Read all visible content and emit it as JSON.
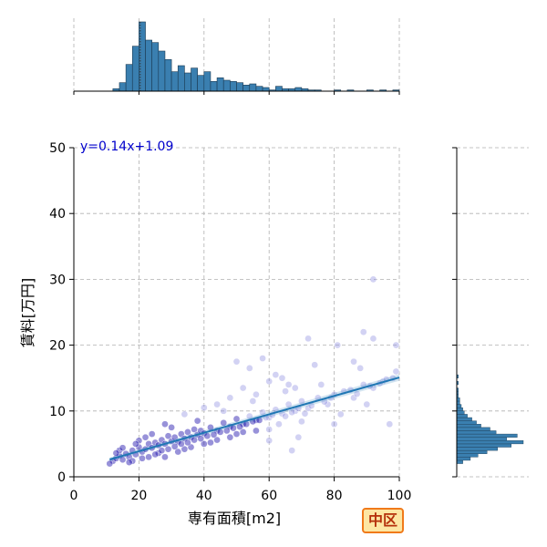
{
  "chart_data": [
    {
      "type": "scatter",
      "panel": "joint",
      "xlabel": "専有面積[m2]",
      "ylabel": "賃料[万円]",
      "xlim": [
        0,
        100
      ],
      "ylim": [
        0,
        50
      ],
      "x_ticks": [
        0,
        20,
        40,
        60,
        80,
        100
      ],
      "y_ticks": [
        0,
        10,
        20,
        30,
        40,
        50
      ],
      "grid": true,
      "regression": {
        "slope": 0.14,
        "intercept": 1.09,
        "label": "y=0.14x+1.09",
        "x_range": [
          11,
          100
        ]
      },
      "points": [
        [
          12,
          2.4
        ],
        [
          13,
          2.8
        ],
        [
          14,
          3.2
        ],
        [
          15,
          2.6
        ],
        [
          16,
          3.5
        ],
        [
          17,
          3.0
        ],
        [
          18,
          4.0
        ],
        [
          19,
          3.4
        ],
        [
          20,
          4.5
        ],
        [
          21,
          3.8
        ],
        [
          22,
          4.2
        ],
        [
          23,
          5.0
        ],
        [
          24,
          4.4
        ],
        [
          25,
          5.2
        ],
        [
          26,
          4.8
        ],
        [
          27,
          5.6
        ],
        [
          28,
          5.0
        ],
        [
          29,
          6.2
        ],
        [
          30,
          5.4
        ],
        [
          31,
          6.0
        ],
        [
          32,
          5.3
        ],
        [
          33,
          6.5
        ],
        [
          34,
          5.8
        ],
        [
          35,
          6.8
        ],
        [
          36,
          6.0
        ],
        [
          37,
          7.2
        ],
        [
          38,
          6.4
        ],
        [
          39,
          7.0
        ],
        [
          40,
          6.6
        ],
        [
          42,
          7.5
        ],
        [
          44,
          7.0
        ],
        [
          46,
          8.2
        ],
        [
          48,
          7.6
        ],
        [
          50,
          8.8
        ],
        [
          52,
          8.0
        ],
        [
          54,
          9.2
        ],
        [
          56,
          8.6
        ],
        [
          58,
          9.8
        ],
        [
          60,
          9.0
        ],
        [
          62,
          10.2
        ],
        [
          64,
          9.6
        ],
        [
          66,
          11.0
        ],
        [
          68,
          10.0
        ],
        [
          70,
          11.5
        ],
        [
          72,
          10.4
        ],
        [
          75,
          12.0
        ],
        [
          78,
          11.0
        ],
        [
          80,
          12.5
        ],
        [
          83,
          13.0
        ],
        [
          86,
          12.0
        ],
        [
          89,
          14.0
        ],
        [
          92,
          13.5
        ],
        [
          95,
          14.5
        ],
        [
          98,
          15.0
        ],
        [
          14,
          4.0
        ],
        [
          18,
          2.4
        ],
        [
          22,
          6.0
        ],
        [
          26,
          3.6
        ],
        [
          30,
          7.5
        ],
        [
          34,
          4.2
        ],
        [
          38,
          8.5
        ],
        [
          42,
          5.2
        ],
        [
          46,
          10.0
        ],
        [
          50,
          6.5
        ],
        [
          55,
          11.5
        ],
        [
          60,
          7.2
        ],
        [
          65,
          13.0
        ],
        [
          70,
          8.4
        ],
        [
          76,
          14.0
        ],
        [
          82,
          9.5
        ],
        [
          88,
          16.5
        ],
        [
          50,
          17.5
        ],
        [
          54,
          16.5
        ],
        [
          58,
          18.0
        ],
        [
          62,
          15.5
        ],
        [
          66,
          14.0
        ],
        [
          72,
          21.0
        ],
        [
          74,
          17.0
        ],
        [
          81,
          20.0
        ],
        [
          86,
          17.5
        ],
        [
          89,
          22.0
        ],
        [
          92,
          21.0
        ],
        [
          99,
          20.0
        ],
        [
          92,
          30.0
        ],
        [
          99,
          16.0
        ],
        [
          97,
          8.0
        ],
        [
          80,
          8.0
        ],
        [
          69,
          6.0
        ],
        [
          67,
          4.0
        ],
        [
          60,
          5.5
        ],
        [
          28,
          8.0
        ],
        [
          34,
          9.5
        ],
        [
          40,
          10.5
        ],
        [
          44,
          11.0
        ],
        [
          48,
          12.0
        ],
        [
          52,
          13.5
        ],
        [
          56,
          12.5
        ],
        [
          60,
          14.5
        ],
        [
          64,
          15.0
        ],
        [
          68,
          13.5
        ],
        [
          20,
          5.5
        ],
        [
          24,
          6.5
        ],
        [
          28,
          3.0
        ],
        [
          32,
          3.8
        ],
        [
          36,
          4.5
        ],
        [
          40,
          5.0
        ],
        [
          44,
          5.6
        ],
        [
          48,
          6.0
        ],
        [
          52,
          6.8
        ],
        [
          56,
          7.0
        ],
        [
          11,
          2.0
        ],
        [
          13,
          3.6
        ],
        [
          15,
          4.4
        ],
        [
          17,
          2.2
        ],
        [
          19,
          5.0
        ],
        [
          21,
          2.8
        ],
        [
          23,
          3.0
        ],
        [
          25,
          3.4
        ],
        [
          27,
          4.0
        ],
        [
          29,
          4.2
        ],
        [
          31,
          4.6
        ],
        [
          33,
          5.0
        ],
        [
          35,
          5.2
        ],
        [
          37,
          5.6
        ],
        [
          39,
          5.8
        ],
        [
          41,
          6.2
        ],
        [
          43,
          6.4
        ],
        [
          45,
          6.8
        ],
        [
          47,
          7.0
        ],
        [
          49,
          7.4
        ],
        [
          51,
          7.6
        ],
        [
          53,
          8.0
        ],
        [
          55,
          8.4
        ],
        [
          57,
          8.6
        ],
        [
          59,
          9.0
        ],
        [
          61,
          9.4
        ],
        [
          63,
          8.0
        ],
        [
          65,
          9.2
        ],
        [
          67,
          9.8
        ],
        [
          69,
          10.4
        ],
        [
          71,
          9.6
        ],
        [
          73,
          10.8
        ],
        [
          77,
          11.4
        ],
        [
          79,
          12.0
        ],
        [
          85,
          13.2
        ],
        [
          87,
          12.6
        ],
        [
          91,
          13.8
        ],
        [
          94,
          14.2
        ],
        [
          96,
          14.8
        ],
        [
          90,
          11.0
        ]
      ]
    },
    {
      "type": "histogram",
      "panel": "top-marginal",
      "variable": "専有面積[m2]",
      "xlim": [
        0,
        100
      ],
      "bin_width": 2,
      "bins": [
        [
          12,
          14,
          2
        ],
        [
          14,
          16,
          7
        ],
        [
          16,
          18,
          22
        ],
        [
          18,
          20,
          37
        ],
        [
          20,
          22,
          57
        ],
        [
          22,
          24,
          42
        ],
        [
          24,
          26,
          40
        ],
        [
          26,
          28,
          33
        ],
        [
          28,
          30,
          26
        ],
        [
          30,
          32,
          16
        ],
        [
          32,
          34,
          21
        ],
        [
          34,
          36,
          15
        ],
        [
          36,
          38,
          19
        ],
        [
          38,
          40,
          13
        ],
        [
          40,
          42,
          16
        ],
        [
          42,
          44,
          8
        ],
        [
          44,
          46,
          11
        ],
        [
          46,
          48,
          9
        ],
        [
          48,
          50,
          8
        ],
        [
          50,
          52,
          7
        ],
        [
          52,
          54,
          5
        ],
        [
          54,
          56,
          6
        ],
        [
          56,
          58,
          4
        ],
        [
          58,
          60,
          3
        ],
        [
          60,
          62,
          1
        ],
        [
          62,
          64,
          4
        ],
        [
          64,
          66,
          2
        ],
        [
          66,
          68,
          2
        ],
        [
          68,
          70,
          3
        ],
        [
          70,
          72,
          2
        ],
        [
          72,
          74,
          1
        ],
        [
          74,
          76,
          1
        ],
        [
          80,
          82,
          1
        ],
        [
          84,
          86,
          1
        ],
        [
          90,
          92,
          1
        ],
        [
          94,
          96,
          1
        ],
        [
          98,
          100,
          1
        ]
      ],
      "median": 20.4
    },
    {
      "type": "histogram",
      "panel": "right-marginal",
      "variable": "賃料[万円]",
      "ylim": [
        0,
        50
      ],
      "bin_width": 0.5,
      "bins": [
        [
          2.0,
          2.5,
          4
        ],
        [
          2.5,
          3.0,
          9
        ],
        [
          3.0,
          3.5,
          14
        ],
        [
          3.5,
          4.0,
          20
        ],
        [
          4.0,
          4.5,
          27
        ],
        [
          4.5,
          5.0,
          36
        ],
        [
          5.0,
          5.5,
          44
        ],
        [
          5.5,
          6.0,
          33
        ],
        [
          6.0,
          6.5,
          40
        ],
        [
          6.5,
          7.0,
          26
        ],
        [
          7.0,
          7.5,
          22
        ],
        [
          7.5,
          8.0,
          16
        ],
        [
          8.0,
          8.5,
          13
        ],
        [
          8.5,
          9.0,
          10
        ],
        [
          9.0,
          9.5,
          7
        ],
        [
          9.5,
          10.0,
          5
        ],
        [
          10.0,
          10.5,
          4
        ],
        [
          10.5,
          11.0,
          3
        ],
        [
          11.0,
          11.5,
          2
        ],
        [
          11.5,
          12.0,
          2
        ],
        [
          12.0,
          12.5,
          1
        ],
        [
          12.5,
          13.0,
          1
        ],
        [
          13.0,
          13.5,
          1
        ],
        [
          14.0,
          14.5,
          1
        ],
        [
          15.0,
          15.5,
          1
        ]
      ]
    }
  ],
  "badge": {
    "label": "中区"
  },
  "colors": {
    "scatter_face": "#8f8fe0",
    "scatter_dark": "#1a0dab",
    "regression": "#1f77b4",
    "hist_fill": "#3a7fb0",
    "grid": "#b0b0b0",
    "eq_text": "#0000cc",
    "badge_bg": "#fde6a3",
    "badge_border": "#f07a1a",
    "badge_text": "#b5300b"
  }
}
